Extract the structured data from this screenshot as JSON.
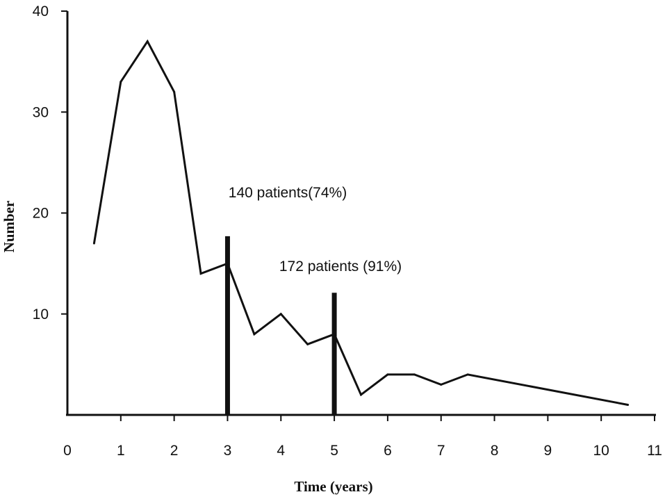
{
  "chart_data": {
    "type": "line",
    "title": "",
    "xlabel": "Time (years)",
    "ylabel": "Number",
    "xlim": [
      0,
      11
    ],
    "ylim": [
      0,
      40
    ],
    "x_ticks": [
      "0",
      "1",
      "2",
      "3",
      "4",
      "5",
      "6",
      "7",
      "8",
      "9",
      "10",
      "11"
    ],
    "y_ticks": [
      "10",
      "20",
      "30",
      "40"
    ],
    "grid": false,
    "legend": "none",
    "series": [
      {
        "x": [
          0.5,
          1,
          1.5,
          2,
          2.5,
          3,
          3.5,
          4,
          4.5,
          5,
          5.5,
          6,
          6.5,
          7,
          7.5,
          10.5
        ],
        "values": [
          17,
          33,
          37,
          32,
          14,
          15,
          8,
          10,
          7,
          8,
          2,
          4,
          4,
          3,
          4,
          1
        ]
      }
    ],
    "markers": [
      {
        "x": 3,
        "height": 17.7,
        "label": "140 patients(74%)"
      },
      {
        "x": 5,
        "height": 12.1,
        "label": "172 patients  (91%)"
      }
    ],
    "colors": {
      "line": "#111111",
      "axis": "#111111"
    }
  }
}
